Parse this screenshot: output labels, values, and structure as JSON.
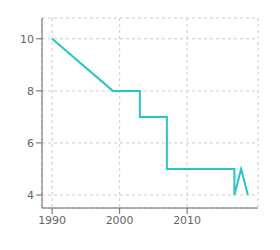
{
  "chart_data": {
    "type": "line",
    "x": [
      1990,
      1999,
      1999,
      2003,
      2003,
      2007,
      2007,
      2010,
      2010,
      2017,
      2017,
      2018,
      2018,
      2019
    ],
    "values": [
      10,
      8,
      8,
      8,
      7,
      7,
      5,
      5,
      5,
      5,
      4,
      5,
      5,
      4
    ],
    "color": "#29c5c5",
    "xlim": [
      1988.5,
      2020.5
    ],
    "ylim": [
      3.5,
      10.8
    ],
    "xticks": [
      1990,
      2000,
      2010
    ],
    "yticks": [
      4,
      6,
      8,
      10
    ],
    "grid": true
  }
}
